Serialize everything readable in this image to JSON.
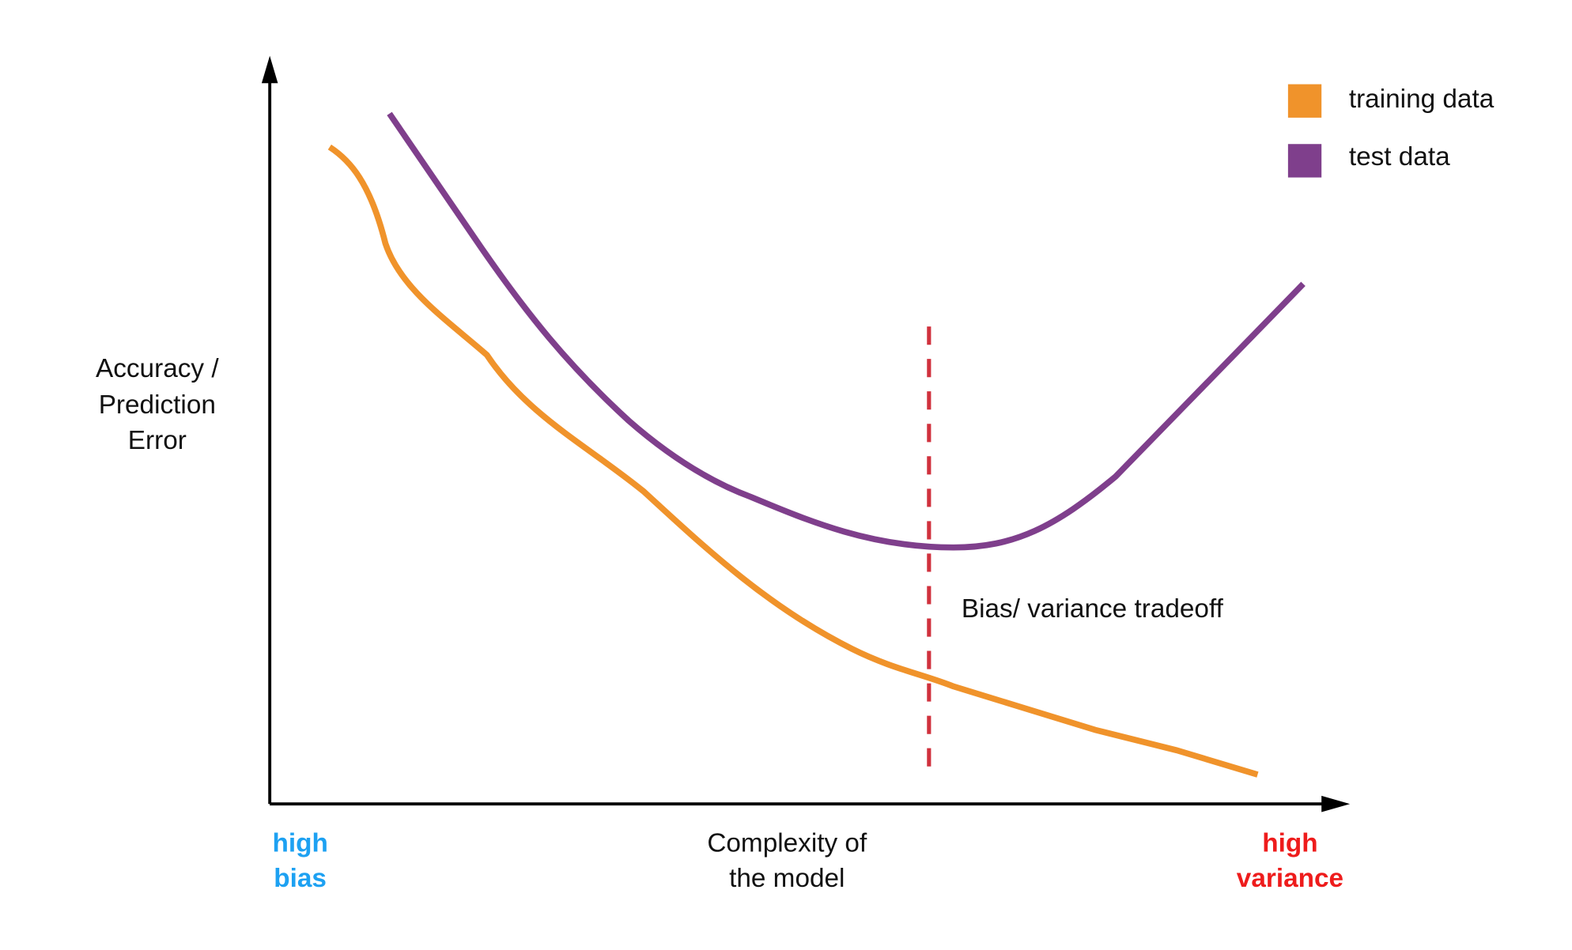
{
  "y_axis_label": [
    "Accuracy /",
    "Prediction",
    "Error"
  ],
  "x_axis_label": [
    "Complexity of",
    "the model"
  ],
  "left_end_label": [
    "high",
    "bias"
  ],
  "right_end_label": [
    "high",
    "variance"
  ],
  "legend": [
    {
      "name": "training data"
    },
    {
      "name": "test data"
    }
  ],
  "annotation": "Bias/ variance tradeoff"
}
